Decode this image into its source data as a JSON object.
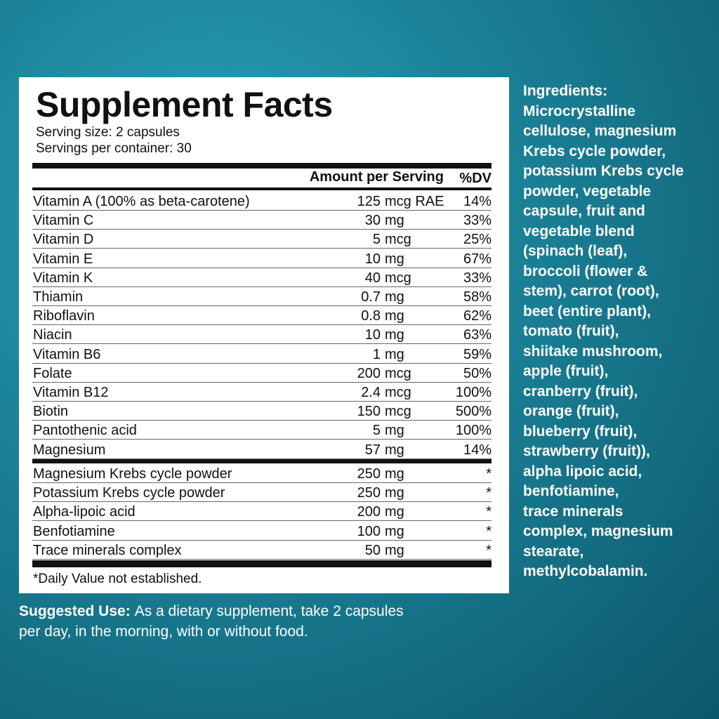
{
  "facts": {
    "title": "Supplement Facts",
    "serving_size": "Serving size: 2 capsules",
    "servings_per_container": "Servings per container: 30",
    "header": {
      "amount": "Amount per Serving",
      "dv": "%DV"
    },
    "rows": [
      {
        "name": "Vitamin A (100% as beta-carotene)",
        "amount": "125",
        "unit": "mcg RAE",
        "dv": "14%"
      },
      {
        "name": "Vitamin C",
        "amount": "30",
        "unit": "mg",
        "dv": "33%"
      },
      {
        "name": "Vitamin D",
        "amount": "5",
        "unit": "mcg",
        "dv": "25%"
      },
      {
        "name": "Vitamin E",
        "amount": "10",
        "unit": "mg",
        "dv": "67%"
      },
      {
        "name": "Vitamin K",
        "amount": "40",
        "unit": "mcg",
        "dv": "33%"
      },
      {
        "name": "Thiamin",
        "amount": "0.7",
        "unit": "mg",
        "dv": "58%"
      },
      {
        "name": "Riboflavin",
        "amount": "0.8",
        "unit": "mg",
        "dv": "62%"
      },
      {
        "name": "Niacin",
        "amount": "10",
        "unit": "mg",
        "dv": "63%"
      },
      {
        "name": "Vitamin B6",
        "amount": "1",
        "unit": "mg",
        "dv": "59%"
      },
      {
        "name": "Folate",
        "amount": "200",
        "unit": "mcg",
        "dv": "50%"
      },
      {
        "name": "Vitamin B12",
        "amount": "2.4",
        "unit": "mcg",
        "dv": "100%"
      },
      {
        "name": "Biotin",
        "amount": "150",
        "unit": "mcg",
        "dv": "500%"
      },
      {
        "name": "Pantothenic acid",
        "amount": "5",
        "unit": "mg",
        "dv": "100%"
      },
      {
        "name": "Magnesium",
        "amount": "57",
        "unit": "mg",
        "dv": "14%"
      }
    ],
    "other_rows": [
      {
        "name": "Magnesium Krebs cycle powder",
        "amount": "250",
        "unit": "mg",
        "dv": "*"
      },
      {
        "name": "Potassium Krebs cycle powder",
        "amount": "250",
        "unit": "mg",
        "dv": "*"
      },
      {
        "name": "Alpha-lipoic acid",
        "amount": "200",
        "unit": "mg",
        "dv": "*"
      },
      {
        "name": "Benfotiamine",
        "amount": "100",
        "unit": "mg",
        "dv": "*"
      },
      {
        "name": "Trace minerals complex",
        "amount": "50",
        "unit": "mg",
        "dv": "*"
      }
    ],
    "footnote": "*Daily Value not established."
  },
  "ingredients": {
    "heading": "Ingredients:",
    "lines": [
      "Microcrystalline",
      "cellulose, magnesium",
      "Krebs cycle powder,",
      "potassium Krebs cycle",
      "powder, vegetable",
      "capsule, fruit and",
      "vegetable blend",
      "(spinach (leaf),",
      "broccoli (flower &",
      "stem), carrot (root),",
      "beet (entire plant),",
      "tomato (fruit),",
      "shiitake mushroom,",
      "apple (fruit),",
      "cranberry (fruit),",
      "orange (fruit),",
      "blueberry (fruit),",
      "strawberry (fruit)),",
      "alpha lipoic acid,",
      "benfotiamine,",
      "trace minerals",
      "complex, magnesium",
      "stearate,",
      "methylcobalamin."
    ]
  },
  "suggested_use": {
    "label": "Suggested Use:",
    "lines": [
      "As a dietary supplement, take 2 capsules",
      "per day, in the morning, with or without food."
    ]
  }
}
